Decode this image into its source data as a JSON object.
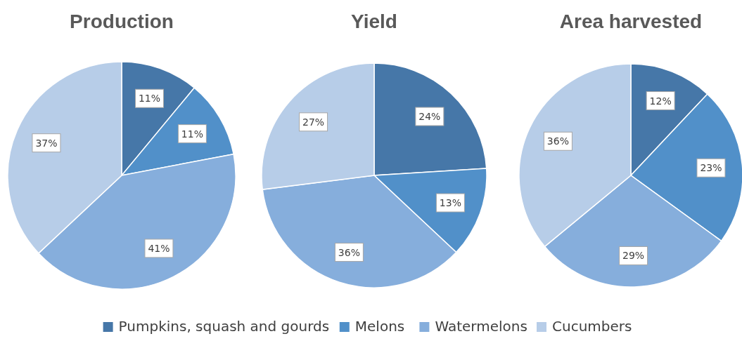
{
  "chart_data": [
    {
      "type": "pie",
      "title": "Production",
      "categories": [
        "Pumpkins, squash and gourds",
        "Melons",
        "Watermelons",
        "Cucumbers"
      ],
      "values": [
        11,
        11,
        41,
        37
      ],
      "value_labels": [
        "11%",
        "11%",
        "41%",
        "37%"
      ],
      "colors": [
        "#4677a8",
        "#5190c9",
        "#86aedc",
        "#b7cde8"
      ],
      "legend": "bottom"
    },
    {
      "type": "pie",
      "title": "Yield",
      "categories": [
        null,
        null,
        null,
        null
      ],
      "values": [
        24,
        13,
        36,
        27
      ],
      "value_labels": [
        "24%",
        "13%",
        "36%",
        "27%"
      ],
      "colors": [
        "#4677a8",
        "#5190c9",
        "#86aedc",
        "#b7cde8"
      ]
    },
    {
      "type": "pie",
      "title": "Area harvested",
      "categories": [
        null,
        null,
        null,
        null
      ],
      "values": [
        12,
        23,
        29,
        36
      ],
      "value_labels": [
        "12%",
        "23%",
        "29%",
        "36%"
      ],
      "colors": [
        "#4677a8",
        "#5190c9",
        "#86aedc",
        "#b7cde8"
      ]
    }
  ]
}
